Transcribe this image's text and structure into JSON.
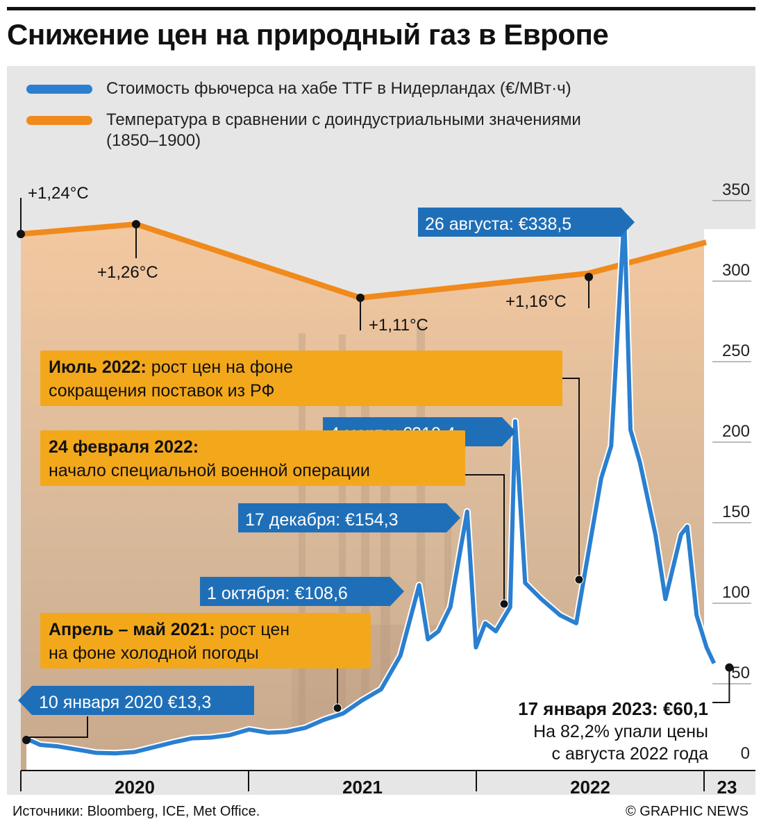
{
  "title": "Снижение цен на природный газ в Европе",
  "legend": {
    "price": "Стоимость фьючерса на хабе TTF в Нидерландах (€/МВт·ч)",
    "temp_line1": "Температура в сравнении с доиндустриальными значениями",
    "temp_line2": "(1850–1900)"
  },
  "colors": {
    "price": "#2a7fd0",
    "temp": "#f08a1c",
    "callout_blue": "#1f6fb8",
    "note_orange": "#f3a81c"
  },
  "footer": {
    "sources": "Источники: Bloomberg, ICE, Met Office.",
    "credit": "© GRAPHIC NEWS"
  },
  "chart_data": {
    "type": "line",
    "title": "Снижение цен на природный газ в Европе",
    "x_range": [
      "2020-01",
      "2023-01"
    ],
    "x_tick_labels": [
      "2020",
      "2021",
      "2022",
      "23"
    ],
    "y_range": [
      0,
      350
    ],
    "y_ticks": [
      0,
      50,
      100,
      150,
      200,
      250,
      300,
      350
    ],
    "grid": false,
    "legend_position": "top-left",
    "series": [
      {
        "name": "Стоимость фьючерса на хабе TTF в Нидерландах (€/МВт·ч)",
        "color": "#2a7fd0",
        "points": [
          [
            "2020-01-10",
            13.3
          ],
          [
            "2020-02-01",
            9.5
          ],
          [
            "2020-03-01",
            8.5
          ],
          [
            "2020-04-01",
            6.5
          ],
          [
            "2020-05-01",
            4.5
          ],
          [
            "2020-06-01",
            4.2
          ],
          [
            "2020-07-01",
            5.0
          ],
          [
            "2020-08-01",
            8.0
          ],
          [
            "2020-09-01",
            11.0
          ],
          [
            "2020-10-01",
            13.5
          ],
          [
            "2020-11-01",
            14.0
          ],
          [
            "2020-12-01",
            15.5
          ],
          [
            "2021-01-01",
            19.0
          ],
          [
            "2021-02-01",
            17.0
          ],
          [
            "2021-03-01",
            17.5
          ],
          [
            "2021-04-01",
            20.0
          ],
          [
            "2021-05-01",
            25.0
          ],
          [
            "2021-06-01",
            29.0
          ],
          [
            "2021-07-01",
            37.0
          ],
          [
            "2021-08-01",
            44.0
          ],
          [
            "2021-09-01",
            65.0
          ],
          [
            "2021-10-01",
            108.6
          ],
          [
            "2021-10-15",
            75.0
          ],
          [
            "2021-11-01",
            80.0
          ],
          [
            "2021-11-20",
            95.0
          ],
          [
            "2021-12-17",
            154.3
          ],
          [
            "2021-12-31",
            70.0
          ],
          [
            "2022-01-15",
            85.0
          ],
          [
            "2022-02-01",
            80.0
          ],
          [
            "2022-02-24",
            95.0
          ],
          [
            "2022-03-04",
            210.4
          ],
          [
            "2022-03-20",
            110.0
          ],
          [
            "2022-04-15",
            100.0
          ],
          [
            "2022-05-15",
            90.0
          ],
          [
            "2022-06-10",
            85.0
          ],
          [
            "2022-06-30",
            130.0
          ],
          [
            "2022-07-20",
            175.0
          ],
          [
            "2022-08-05",
            195.0
          ],
          [
            "2022-08-26",
            338.5
          ],
          [
            "2022-09-05",
            205.0
          ],
          [
            "2022-09-20",
            185.0
          ],
          [
            "2022-10-15",
            140.0
          ],
          [
            "2022-10-31",
            100.0
          ],
          [
            "2022-11-25",
            140.0
          ],
          [
            "2022-12-05",
            145.0
          ],
          [
            "2022-12-20",
            90.0
          ],
          [
            "2023-01-05",
            70.0
          ],
          [
            "2023-01-17",
            60.1
          ]
        ]
      },
      {
        "name": "Температура в сравнении с доиндустриальными значениями (1850–1900)",
        "color": "#f08a1c",
        "unit": "°C",
        "points": [
          [
            "2019",
            1.24
          ],
          [
            "2020",
            1.26
          ],
          [
            "2021",
            1.11
          ],
          [
            "2022",
            1.16
          ]
        ],
        "labels": [
          "+1,24°C",
          "+1,26°C",
          "+1,11°C",
          "+1,16°C"
        ]
      }
    ],
    "price_callouts": [
      {
        "date": "2020-01-10",
        "value": 13.3,
        "label": "10 января 2020 €13,3"
      },
      {
        "date": "2021-10-01",
        "value": 108.6,
        "label": "1 октября: €108,6"
      },
      {
        "date": "2021-12-17",
        "value": 154.3,
        "label": "17 декабря: €154,3"
      },
      {
        "date": "2022-03-04",
        "value": 210.4,
        "label": "4 марта: €210,4"
      },
      {
        "date": "2022-08-26",
        "value": 338.5,
        "label": "26 августа: €338,5"
      }
    ],
    "final": {
      "date": "2023-01-17",
      "value": 60.1,
      "label": "17 января 2023: €60,1",
      "note1": "На 82,2% упали цены",
      "note2": "с августа 2022 года"
    },
    "event_notes": [
      {
        "date": "2021-05-01",
        "bold": "Апрель – май 2021:",
        "rest": " рост цен",
        "line2": "на фоне холодной погоды"
      },
      {
        "date": "2022-02-24",
        "bold": "24 февраля 2022:",
        "rest": "",
        "line2": "начало специальной военной операции"
      },
      {
        "date": "2022-07-01",
        "bold": "Июль 2022:",
        "rest": " рост цен на фоне",
        "line2": "сокращения поставок из РФ"
      }
    ]
  }
}
